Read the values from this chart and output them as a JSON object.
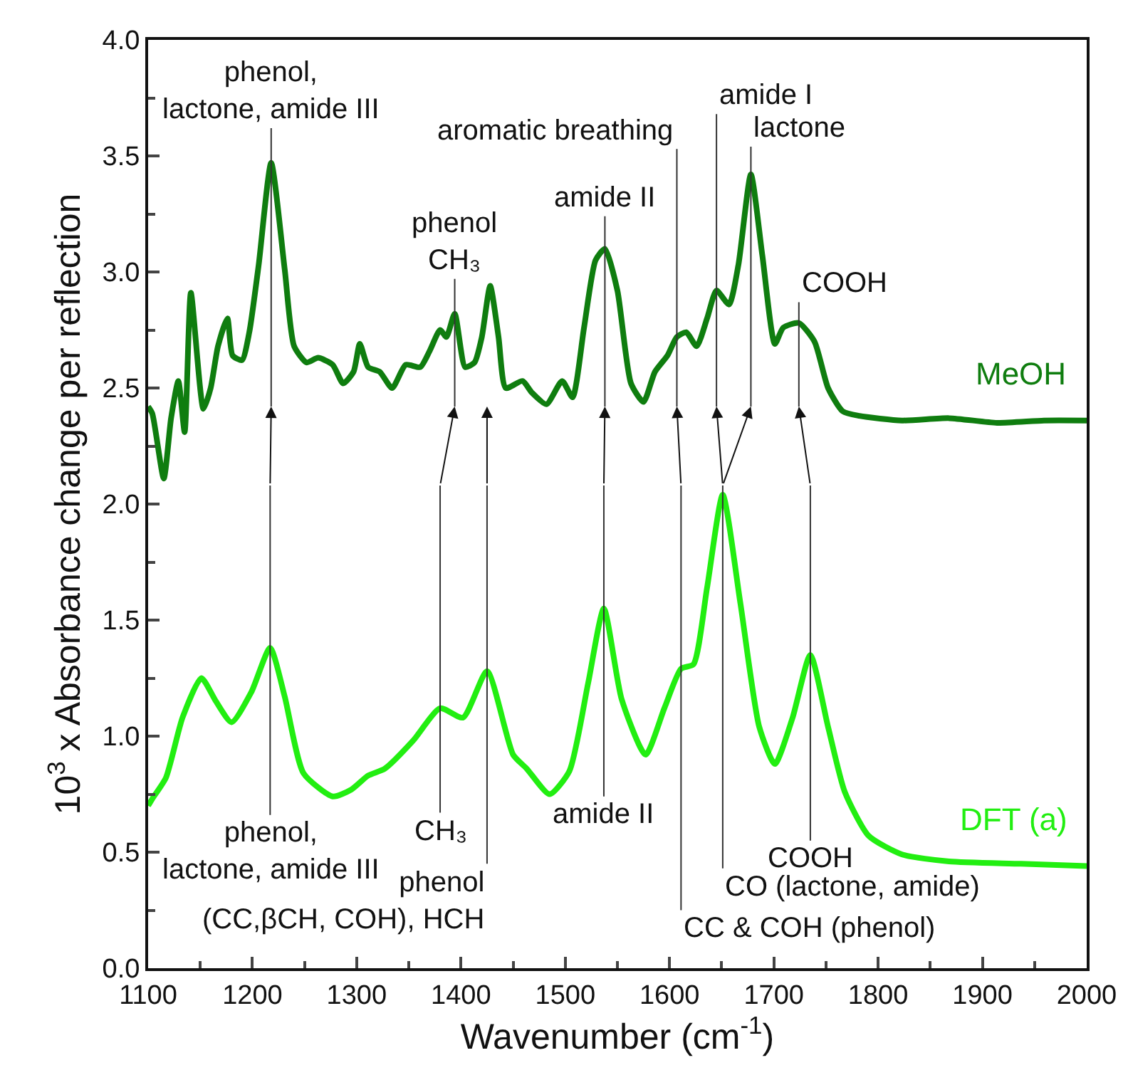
{
  "chart_data": {
    "type": "line",
    "xlabel": "Wavenumber (cm$^{-1}$)",
    "ylabel": "10$^{3}$ x Absorbance change per reflection",
    "xlim": [
      1100,
      2000
    ],
    "xticks": [
      1100,
      1200,
      1300,
      1400,
      1500,
      1600,
      1700,
      1800,
      1900,
      2000
    ],
    "ylim": [
      0,
      4
    ],
    "yticks": [
      {
        "value": 0,
        "label": "0.0"
      },
      {
        "value": 0.5,
        "label": "0.5"
      },
      {
        "value": 1,
        "label": "1.0"
      },
      {
        "value": 1.5,
        "label": "1.5"
      },
      {
        "value": 2,
        "label": "2.0"
      },
      {
        "value": 2.5,
        "label": "2.5"
      },
      {
        "value": 3,
        "label": "3.0"
      },
      {
        "value": 3.5,
        "label": "3.5"
      },
      {
        "value": 4,
        "label": "4.0"
      }
    ],
    "grid": false,
    "legend": false,
    "marker": "none",
    "line_style": "solid",
    "series": [
      {
        "name": "MeOH",
        "color": "#0f7d0f",
        "x": [
          1100,
          1104,
          1115,
          1122,
          1129,
          1135,
          1141,
          1153,
          1160,
          1167,
          1176,
          1181,
          1190,
          1197,
          1206,
          1218,
          1231,
          1240,
          1252,
          1263,
          1277,
          1287,
          1297,
          1303,
          1311,
          1322,
          1334,
          1347,
          1361,
          1370,
          1380,
          1386,
          1394,
          1404,
          1413,
          1420,
          1428,
          1436,
          1443,
          1459,
          1468,
          1482,
          1497,
          1507,
          1518,
          1529,
          1538,
          1550,
          1563,
          1575,
          1586,
          1598,
          1607,
          1616,
          1626,
          1636,
          1645,
          1657,
          1666,
          1678,
          1689,
          1701,
          1709,
          1724,
          1739,
          1752,
          1766,
          1782,
          1823,
          1868,
          1914,
          1959,
          2000
        ],
        "values": [
          2.42,
          2.39,
          2.11,
          2.37,
          2.53,
          2.31,
          2.91,
          2.41,
          2.5,
          2.68,
          2.8,
          2.64,
          2.62,
          2.74,
          3.03,
          3.47,
          3.01,
          2.68,
          2.61,
          2.63,
          2.6,
          2.52,
          2.57,
          2.69,
          2.59,
          2.57,
          2.5,
          2.6,
          2.59,
          2.66,
          2.75,
          2.72,
          2.82,
          2.59,
          2.61,
          2.72,
          2.94,
          2.72,
          2.5,
          2.53,
          2.48,
          2.43,
          2.53,
          2.46,
          2.76,
          3.05,
          3.1,
          2.92,
          2.52,
          2.44,
          2.57,
          2.64,
          2.72,
          2.74,
          2.68,
          2.8,
          2.92,
          2.86,
          3.03,
          3.42,
          3.07,
          2.69,
          2.76,
          2.78,
          2.7,
          2.5,
          2.4,
          2.38,
          2.36,
          2.37,
          2.35,
          2.36,
          2.36
        ]
      },
      {
        "name": "DFT (a)",
        "color": "#22ee11",
        "x": [
          1100,
          1104,
          1117,
          1133,
          1151,
          1165,
          1180,
          1199,
          1217,
          1231,
          1249,
          1277,
          1295,
          1311,
          1327,
          1354,
          1380,
          1402,
          1425,
          1450,
          1463,
          1485,
          1504,
          1522,
          1537,
          1554,
          1577,
          1595,
          1611,
          1623,
          1636,
          1651,
          1668,
          1686,
          1701,
          1718,
          1735,
          1752,
          1768,
          1791,
          1823,
          1868,
          1937,
          2000
        ],
        "values": [
          0.7,
          0.73,
          0.82,
          1.08,
          1.25,
          1.15,
          1.06,
          1.19,
          1.38,
          1.17,
          0.84,
          0.74,
          0.77,
          0.83,
          0.86,
          0.98,
          1.12,
          1.08,
          1.28,
          0.92,
          0.86,
          0.75,
          0.85,
          1.23,
          1.55,
          1.16,
          0.92,
          1.12,
          1.29,
          1.31,
          1.64,
          2.04,
          1.57,
          1.04,
          0.88,
          1.08,
          1.35,
          1.04,
          0.76,
          0.57,
          0.49,
          0.46,
          0.45,
          0.44
        ]
      }
    ],
    "annotations": [
      {
        "text": "phenol,\nlactone, amide III",
        "x": 1218,
        "y": 3.47
      },
      {
        "text": "phenol\nCH₃",
        "x": 1394,
        "y": 2.82
      },
      {
        "text": "aromatic breathing",
        "x": 1607,
        "y": 2.72
      },
      {
        "text": "amide II",
        "x": 1538,
        "y": 3.1
      },
      {
        "text": "amide I",
        "x": 1645,
        "y": 2.92
      },
      {
        "text": "lactone",
        "x": 1678,
        "y": 3.42
      },
      {
        "text": "COOH",
        "x": 1724,
        "y": 2.78
      },
      {
        "text": "phenol,\nlactone, amide III",
        "x": 1217,
        "y": 1.38
      },
      {
        "text": "CH₃",
        "x": 1380,
        "y": 1.12
      },
      {
        "text": "phenol\n(CC,βCH, COH), HCH",
        "x": 1425,
        "y": 1.28
      },
      {
        "text": "amide II",
        "x": 1537,
        "y": 1.55
      },
      {
        "text": "COOH",
        "x": 1735,
        "y": 1.35
      },
      {
        "text": "CO (lactone, amide)",
        "x": 1651,
        "y": 2.04
      },
      {
        "text": "CC & COH (phenol)",
        "x": 1611,
        "y": 1.29
      }
    ]
  }
}
